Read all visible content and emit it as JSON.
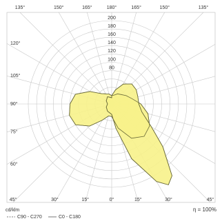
{
  "chart_data": {
    "type": "polar",
    "unit_label": "cd/klm",
    "efficiency": "η = 100%",
    "rlim": [
      0,
      230
    ],
    "rticks": [
      {
        "value": 20,
        "label": null
      },
      {
        "value": 40,
        "label": null
      },
      {
        "value": 60,
        "label": null
      },
      80,
      100,
      120,
      140,
      160,
      180,
      200
    ],
    "angle_ticks": [
      {
        "value": -180,
        "label": "180°"
      },
      {
        "value": -165,
        "label": "165°"
      },
      {
        "value": -150,
        "label": "150°"
      },
      {
        "value": -135,
        "label": "135°"
      },
      {
        "value": -120,
        "label": "120°"
      },
      {
        "value": -105,
        "label": "105°"
      },
      {
        "value": -90,
        "label": "90°"
      },
      {
        "value": -75,
        "label": "75°"
      },
      {
        "value": -60,
        "label": "60°"
      },
      {
        "value": -45,
        "label": "45°"
      },
      {
        "value": -30,
        "label": "30°"
      },
      {
        "value": -15,
        "label": "15°"
      },
      {
        "value": 0,
        "label": "0°"
      },
      {
        "value": 15,
        "label": "15°"
      },
      {
        "value": 30,
        "label": "30°"
      },
      {
        "value": 45,
        "label": "45°"
      },
      {
        "value": 60,
        "label": null
      },
      {
        "value": 75,
        "label": null
      },
      {
        "value": 90,
        "label": null
      },
      {
        "value": 105,
        "label": null
      },
      {
        "value": 120,
        "label": null
      },
      {
        "value": 135,
        "label": "135°"
      },
      {
        "value": 150,
        "label": "150°"
      },
      {
        "value": 165,
        "label": "165°"
      }
    ],
    "series": [
      {
        "name": "C90 - C270",
        "color": "#f7f28a",
        "dash": true,
        "x": [
          -180,
          -165,
          -150,
          -135,
          -120,
          -105,
          -90,
          -75,
          -60,
          -45,
          -30,
          -15,
          0,
          15,
          30,
          45,
          60,
          75,
          90,
          105,
          120,
          135,
          150,
          165,
          180
        ],
        "values": [
          20,
          25,
          28,
          35,
          60,
          90,
          100,
          105,
          100,
          75,
          45,
          30,
          30,
          60,
          95,
          110,
          105,
          90,
          70,
          50,
          40,
          32,
          28,
          22,
          20
        ]
      },
      {
        "name": "C0 - C180",
        "color": "#f7f28a",
        "dash": false,
        "x": [
          -180,
          -150,
          -120,
          -90,
          -60,
          -30,
          0,
          10,
          20,
          30,
          35,
          40,
          50,
          60,
          75,
          90,
          105,
          120,
          135,
          150,
          165,
          180
        ],
        "values": [
          15,
          20,
          15,
          10,
          15,
          20,
          25,
          60,
          140,
          215,
          237,
          225,
          160,
          110,
          75,
          65,
          65,
          68,
          68,
          55,
          35,
          20
        ]
      }
    ]
  }
}
